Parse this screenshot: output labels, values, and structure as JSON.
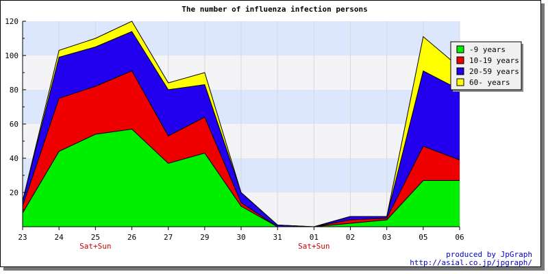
{
  "chart_data": {
    "type": "area",
    "stacked": true,
    "title": "The number of influenza infection persons",
    "categories": [
      "23",
      "24",
      "25",
      "26",
      "27",
      "29",
      "30",
      "31",
      "01",
      "02",
      "03",
      "05",
      "06"
    ],
    "category_notes": [
      "",
      "",
      "Sat+Sun",
      "",
      "",
      "",
      "",
      "",
      "Sat+Sun",
      "",
      "",
      "",
      ""
    ],
    "note_color": "#cc0000",
    "ylim": [
      0,
      120
    ],
    "yticks": [
      20,
      40,
      60,
      80,
      100,
      120
    ],
    "grid": true,
    "band_colors": [
      "#f4f4f6",
      "#dce6fc"
    ],
    "legend_position": "top-right",
    "series": [
      {
        "name": "-9 years",
        "color": "#00ee00",
        "values": [
          8,
          44,
          54,
          57,
          37,
          43,
          12,
          0,
          0,
          2,
          4,
          27,
          27
        ]
      },
      {
        "name": "10-19 years",
        "color": "#ee0000",
        "values": [
          4,
          31,
          28,
          34,
          16,
          21,
          2,
          0,
          0,
          2,
          1,
          20,
          12
        ]
      },
      {
        "name": "20-59 years",
        "color": "#2200ee",
        "values": [
          3,
          24,
          23,
          23,
          27,
          19,
          6,
          1,
          0,
          2,
          1,
          44,
          41
        ]
      },
      {
        "name": "60- years",
        "color": "#ffff00",
        "values": [
          0,
          4,
          5,
          6,
          4,
          7,
          0,
          0,
          0,
          0,
          0,
          20,
          13
        ]
      }
    ]
  },
  "credit": {
    "line1": "produced by JpGraph",
    "line2": "http://asial.co.jp/jpgraph/"
  }
}
